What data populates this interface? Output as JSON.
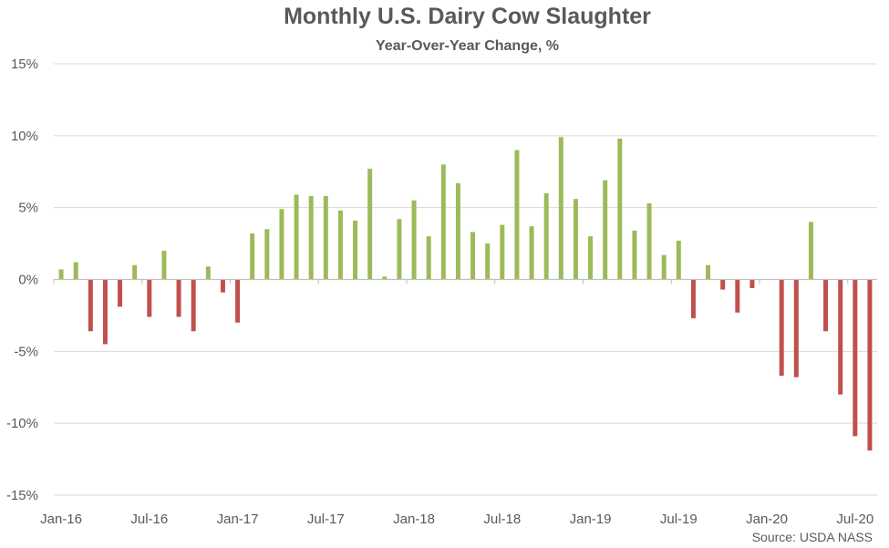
{
  "chart_data": {
    "type": "bar",
    "title": "Monthly U.S. Dairy Cow Slaughter",
    "subtitle": "Year-Over-Year Change, %",
    "source": "Source: USDA NASS",
    "xlabel": "",
    "ylabel": "",
    "ylim": [
      -15,
      15
    ],
    "y_ticks": [
      "15%",
      "10%",
      "5%",
      "0%",
      "-5%",
      "-10%",
      "-15%"
    ],
    "y_tick_values": [
      15,
      10,
      5,
      0,
      -5,
      -10,
      -15
    ],
    "x_tick_labels": [
      "Jan-16",
      "Jul-16",
      "Jan-17",
      "Jul-17",
      "Jan-18",
      "Jul-18",
      "Jan-19",
      "Jul-19",
      "Jan-20",
      "Jul-20"
    ],
    "x_tick_indices": [
      0,
      6,
      12,
      18,
      24,
      30,
      36,
      42,
      48,
      54
    ],
    "grid": true,
    "colors": {
      "positive": "#9BBB59",
      "negative": "#C0504D",
      "grid": "#D9D9D9",
      "axis": "#BFBFBF",
      "text": "#595959"
    },
    "categories": [
      "Jan-16",
      "Feb-16",
      "Mar-16",
      "Apr-16",
      "May-16",
      "Jun-16",
      "Jul-16",
      "Aug-16",
      "Sep-16",
      "Oct-16",
      "Nov-16",
      "Dec-16",
      "Jan-17",
      "Feb-17",
      "Mar-17",
      "Apr-17",
      "May-17",
      "Jun-17",
      "Jul-17",
      "Aug-17",
      "Sep-17",
      "Oct-17",
      "Nov-17",
      "Dec-17",
      "Jan-18",
      "Feb-18",
      "Mar-18",
      "Apr-18",
      "May-18",
      "Jun-18",
      "Jul-18",
      "Aug-18",
      "Sep-18",
      "Oct-18",
      "Nov-18",
      "Dec-18",
      "Jan-19",
      "Feb-19",
      "Mar-19",
      "Apr-19",
      "May-19",
      "Jun-19",
      "Jul-19",
      "Aug-19",
      "Sep-19",
      "Oct-19",
      "Nov-19",
      "Dec-19",
      "Jan-20",
      "Feb-20",
      "Mar-20",
      "Apr-20",
      "May-20",
      "Jun-20",
      "Jul-20",
      "Aug-20"
    ],
    "values": [
      0.7,
      1.2,
      -3.6,
      -4.5,
      -1.9,
      1.0,
      -2.6,
      2.0,
      -2.6,
      -3.6,
      0.9,
      -0.9,
      -3.0,
      3.2,
      3.5,
      4.9,
      5.9,
      5.8,
      5.8,
      4.8,
      4.1,
      7.7,
      0.2,
      4.2,
      5.5,
      3.0,
      8.0,
      6.7,
      3.3,
      2.5,
      3.8,
      9.0,
      3.7,
      6.0,
      9.9,
      5.6,
      3.0,
      6.9,
      9.8,
      3.4,
      5.3,
      1.7,
      2.7,
      -2.7,
      1.0,
      -0.7,
      -2.3,
      -0.6,
      0.0,
      -6.7,
      -6.8,
      4.0,
      -3.6,
      -8.0,
      -10.9,
      -11.9
    ]
  }
}
